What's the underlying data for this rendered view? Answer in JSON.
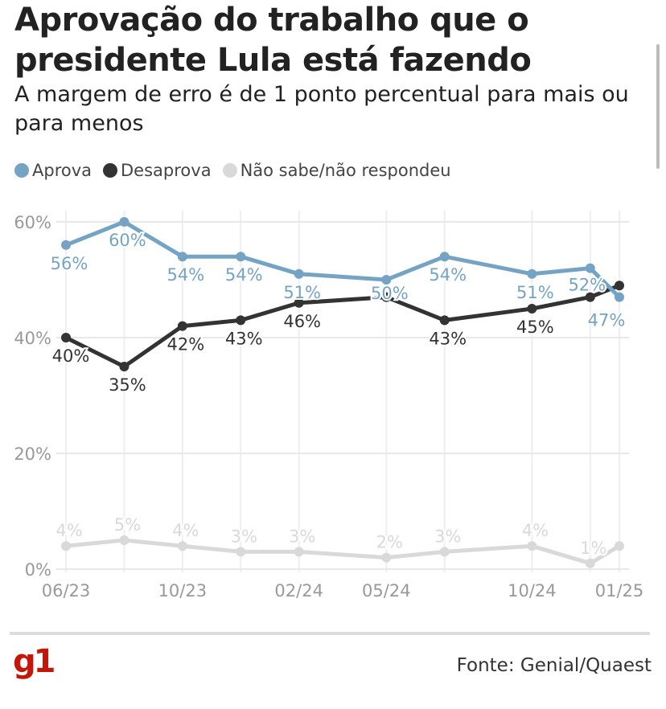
{
  "chart_data": {
    "type": "line",
    "title": "Aprovação do trabalho que o presidente Lula está fazendo",
    "subtitle": "A margem de erro é de 1 ponto percentual para mais ou para menos",
    "x": [
      "2023-06",
      "2023-08",
      "2023-10",
      "2023-12",
      "2024-02",
      "2024-05",
      "2024-07",
      "2024-10",
      "2024-12",
      "2025-01"
    ],
    "x_ticks": [
      {
        "x": "2023-06",
        "label": "06/23"
      },
      {
        "x": "2023-10",
        "label": "10/23"
      },
      {
        "x": "2024-02",
        "label": "02/24"
      },
      {
        "x": "2024-05",
        "label": "05/24"
      },
      {
        "x": "2024-10",
        "label": "10/24"
      },
      {
        "x": "2025-01",
        "label": "01/25"
      }
    ],
    "y_ticks": [
      {
        "v": 0,
        "label": "0%"
      },
      {
        "v": 20,
        "label": "20%"
      },
      {
        "v": 40,
        "label": "40%"
      },
      {
        "v": 60,
        "label": "60%"
      }
    ],
    "ylim": [
      0,
      60
    ],
    "grid": true,
    "legend_placement": "top-left",
    "series": [
      {
        "name": "Aprova",
        "color": "#75a3c4",
        "values": [
          56,
          60,
          54,
          54,
          51,
          50,
          54,
          51,
          52,
          47
        ],
        "labels": [
          "56%",
          "60%",
          "54%",
          "54%",
          "51%",
          "50%",
          "54%",
          "51%",
          "52%",
          "47%"
        ]
      },
      {
        "name": "Desaprova",
        "color": "#333333",
        "values": [
          40,
          35,
          42,
          43,
          46,
          47,
          43,
          45,
          47,
          49
        ],
        "labels": [
          "40%",
          "35%",
          "42%",
          "43%",
          "46%",
          null,
          "43%",
          "45%",
          null,
          null
        ]
      },
      {
        "name": "Não sabe/não respondeu",
        "color": "#d9d9d9",
        "values": [
          4,
          5,
          4,
          3,
          3,
          2,
          3,
          4,
          1,
          4
        ],
        "labels": [
          "4%",
          "5%",
          "4%",
          "3%",
          "3%",
          "2%",
          "3%",
          "4%",
          "1%",
          null
        ]
      }
    ]
  },
  "footer": {
    "logo": "g1",
    "source": "Fonte: Genial/Quaest"
  }
}
